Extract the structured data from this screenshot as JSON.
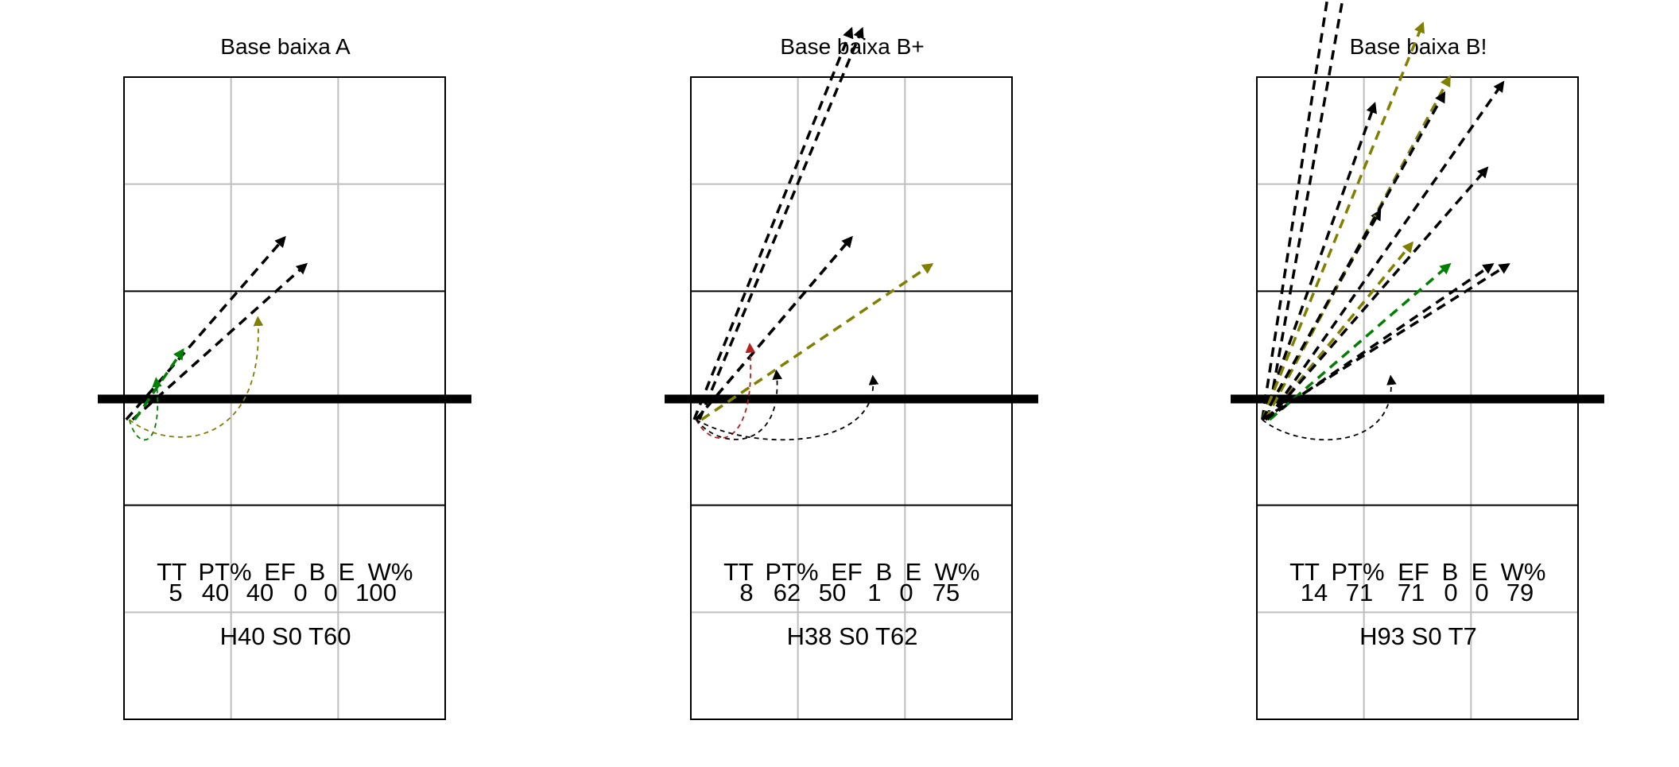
{
  "colors": {
    "black": "#000000",
    "olive": "#808000",
    "green": "#008000",
    "red": "#b22222",
    "grid": "#bebebe"
  },
  "chart_data": [
    {
      "type": "scatter",
      "title": "Base baixa A",
      "stats": {
        "headers": [
          "TT",
          "PT%",
          "EF",
          "B",
          "E",
          "W%"
        ],
        "values": [
          "5",
          "40",
          "40",
          "0",
          "0",
          "100"
        ],
        "footer": "H40 S0 T60"
      },
      "arrows": [
        {
          "x0": 0.02,
          "y0": 3.8,
          "x1": 1.5,
          "y1": 5.5,
          "color": "black",
          "style": "straight",
          "width": "thick"
        },
        {
          "x0": 0.08,
          "y0": 3.8,
          "x1": 1.7,
          "y1": 5.25,
          "color": "black",
          "style": "straight",
          "width": "thick"
        },
        {
          "x0": 0.1,
          "y0": 3.8,
          "x1": 0.55,
          "y1": 4.45,
          "color": "green",
          "style": "straight",
          "width": "thick"
        },
        {
          "x0": 0.05,
          "y0": 3.8,
          "x1": 0.3,
          "y1": 4.18,
          "color": "green",
          "style": "curve",
          "width": "thin"
        },
        {
          "x0": 0.05,
          "y0": 3.8,
          "x1": 1.25,
          "y1": 4.75,
          "color": "olive",
          "style": "curve",
          "width": "thin"
        }
      ]
    },
    {
      "type": "scatter",
      "title": "Base baixa B+",
      "stats": {
        "headers": [
          "TT",
          "PT%",
          "EF",
          "B",
          "E",
          "W%"
        ],
        "values": [
          "8",
          "62",
          "50",
          "1",
          "0",
          "75"
        ],
        "footer": "H38 S0 T62"
      },
      "arrows": [
        {
          "x0": 0.05,
          "y0": 3.8,
          "x1": 1.5,
          "y1": 5.5,
          "color": "black",
          "style": "straight",
          "width": "thick"
        },
        {
          "x0": 0.05,
          "y0": 3.8,
          "x1": 1.5,
          "y1": 5.5,
          "color": "black",
          "style": "straight",
          "width": "thick"
        },
        {
          "x0": 0.03,
          "y0": 3.8,
          "x1": 1.5,
          "y1": 7.45,
          "color": "black",
          "style": "straight",
          "width": "thick"
        },
        {
          "x0": 0.08,
          "y0": 3.8,
          "x1": 1.6,
          "y1": 7.45,
          "color": "black",
          "style": "straight",
          "width": "thick"
        },
        {
          "x0": 0.1,
          "y0": 3.8,
          "x1": 2.25,
          "y1": 5.25,
          "color": "olive",
          "style": "straight",
          "width": "thick"
        },
        {
          "x0": 0.05,
          "y0": 3.8,
          "x1": 0.55,
          "y1": 4.5,
          "color": "red",
          "style": "curve",
          "width": "thin"
        },
        {
          "x0": 0.05,
          "y0": 3.8,
          "x1": 0.8,
          "y1": 4.25,
          "color": "black",
          "style": "curve",
          "width": "thin"
        },
        {
          "x0": 0.05,
          "y0": 3.8,
          "x1": 1.7,
          "y1": 4.2,
          "color": "black",
          "style": "curve",
          "width": "thin"
        }
      ]
    },
    {
      "type": "scatter",
      "title": "Base baixa B!",
      "stats": {
        "headers": [
          "TT",
          "PT%",
          "EF",
          "B",
          "E",
          "W%"
        ],
        "values": [
          "14",
          "71",
          "71",
          "0",
          "0",
          "79"
        ],
        "footer": "H93 S0 T7"
      },
      "arrows": [
        {
          "x0": 0.05,
          "y0": 3.8,
          "x1": 0.7,
          "y1": 8.0,
          "color": "black",
          "style": "straight",
          "width": "thick"
        },
        {
          "x0": 0.1,
          "y0": 3.8,
          "x1": 0.85,
          "y1": 8.0,
          "color": "black",
          "style": "straight",
          "width": "thick"
        },
        {
          "x0": 0.05,
          "y0": 3.8,
          "x1": 1.1,
          "y1": 6.75,
          "color": "black",
          "style": "straight",
          "width": "thick"
        },
        {
          "x0": 0.05,
          "y0": 3.8,
          "x1": 1.15,
          "y1": 5.75,
          "color": "black",
          "style": "straight",
          "width": "thick"
        },
        {
          "x0": 0.05,
          "y0": 3.8,
          "x1": 1.55,
          "y1": 7.5,
          "color": "olive",
          "style": "straight",
          "width": "thick"
        },
        {
          "x0": 0.08,
          "y0": 3.8,
          "x1": 1.8,
          "y1": 7.0,
          "color": "olive",
          "style": "straight",
          "width": "thick"
        },
        {
          "x0": 0.1,
          "y0": 3.8,
          "x1": 1.45,
          "y1": 5.45,
          "color": "olive",
          "style": "straight",
          "width": "thick"
        },
        {
          "x0": 0.05,
          "y0": 3.8,
          "x1": 1.75,
          "y1": 6.85,
          "color": "black",
          "style": "straight",
          "width": "thick"
        },
        {
          "x0": 0.1,
          "y0": 3.8,
          "x1": 2.3,
          "y1": 6.95,
          "color": "black",
          "style": "straight",
          "width": "thick"
        },
        {
          "x0": 0.1,
          "y0": 3.8,
          "x1": 2.15,
          "y1": 6.15,
          "color": "black",
          "style": "straight",
          "width": "thick"
        },
        {
          "x0": 0.12,
          "y0": 3.8,
          "x1": 1.8,
          "y1": 5.25,
          "color": "green",
          "style": "straight",
          "width": "thick"
        },
        {
          "x0": 0.08,
          "y0": 3.8,
          "x1": 2.2,
          "y1": 5.25,
          "color": "black",
          "style": "straight",
          "width": "thick"
        },
        {
          "x0": 0.05,
          "y0": 3.8,
          "x1": 2.35,
          "y1": 5.25,
          "color": "black",
          "style": "straight",
          "width": "thick"
        },
        {
          "x0": 0.05,
          "y0": 3.8,
          "x1": 1.25,
          "y1": 4.2,
          "color": "black",
          "style": "curve",
          "width": "thin"
        }
      ]
    }
  ]
}
